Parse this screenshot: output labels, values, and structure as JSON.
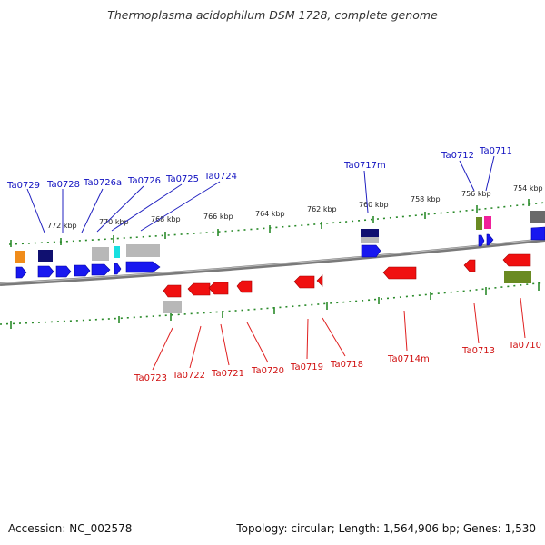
{
  "title": "Thermoplasma acidophilum DSM 1728, complete genome",
  "accession_text": "Accession: NC_002578",
  "summary_text": "Topology: circular; Length: 1,564,906 bp; Genes: 1,530",
  "colors": {
    "forward_label": "#1010c0",
    "reverse_label": "#d01010",
    "forward_gene": "#1010ee",
    "reverse_gene": "#ee1010",
    "tick": "#2a8a2a",
    "backbone": "#888888"
  },
  "kbp_labels": [
    "772 kbp",
    "770 kbp",
    "768 kbp",
    "766 kbp",
    "764 kbp",
    "762 kbp",
    "760 kbp",
    "758 kbp",
    "756 kbp",
    "754 kbp"
  ],
  "forward_labels": [
    "Ta0729",
    "Ta0728",
    "Ta0726a",
    "Ta0726",
    "Ta0725",
    "Ta0724",
    "Ta0717m",
    "Ta0712",
    "Ta0711"
  ],
  "reverse_labels": [
    "Ta0723",
    "Ta0722",
    "Ta0721",
    "Ta0720",
    "Ta0719",
    "Ta0718",
    "Ta0714m",
    "Ta0713",
    "Ta0710"
  ]
}
